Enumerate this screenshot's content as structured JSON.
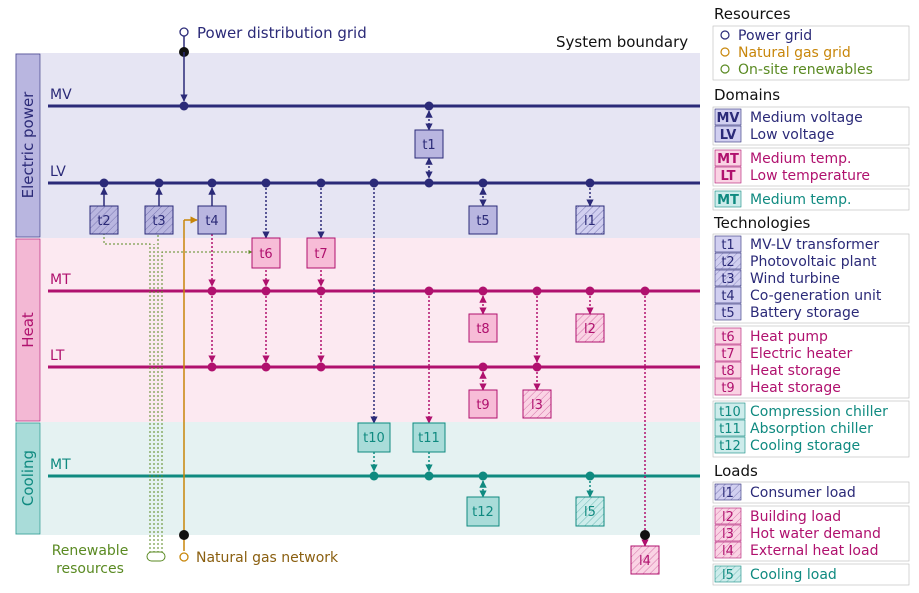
{
  "header": {
    "power_grid": "Power distribution grid",
    "system_boundary": "System boundary"
  },
  "footer": {
    "renewables_line1": "Renewable",
    "renewables_line2": "resources",
    "gas_network": "Natural gas network"
  },
  "domains": {
    "electric": "Electric power",
    "heat": "Heat",
    "cooling": "Cooling"
  },
  "buses": {
    "mv": "MV",
    "lv": "LV",
    "heat_mt": "MT",
    "heat_lt": "LT",
    "cool_mt": "MT"
  },
  "nodes": {
    "t1": "t1",
    "t2": "t2",
    "t3": "t3",
    "t4": "t4",
    "t5": "t5",
    "t6": "t6",
    "t7": "t7",
    "t8": "t8",
    "t9": "t9",
    "t10": "t10",
    "t11": "t11",
    "t12": "t12",
    "l1": "l1",
    "l2": "l2",
    "l3": "l3",
    "l4": "l4",
    "l5": "l5"
  },
  "legend": {
    "resources_title": "Resources",
    "resources": [
      "Power grid",
      "Natural gas grid",
      "On-site renewables"
    ],
    "domains_title": "Domains",
    "domain_items": [
      {
        "code": "MV",
        "label": "Medium voltage"
      },
      {
        "code": "LV",
        "label": "Low voltage"
      },
      {
        "code": "MT",
        "label": "Medium temp."
      },
      {
        "code": "LT",
        "label": "Low temperature"
      },
      {
        "code": "MT",
        "label": "Medium temp."
      }
    ],
    "technologies_title": "Technologies",
    "technologies": [
      {
        "code": "t1",
        "label": "MV-LV transformer"
      },
      {
        "code": "t2",
        "label": "Photovoltaic plant"
      },
      {
        "code": "t3",
        "label": "Wind turbine"
      },
      {
        "code": "t4",
        "label": "Co-generation unit"
      },
      {
        "code": "t5",
        "label": "Battery storage"
      },
      {
        "code": "t6",
        "label": "Heat pump"
      },
      {
        "code": "t7",
        "label": "Electric heater"
      },
      {
        "code": "t8",
        "label": "Heat storage"
      },
      {
        "code": "t9",
        "label": "Heat storage"
      },
      {
        "code": "t10",
        "label": "Compression chiller"
      },
      {
        "code": "t11",
        "label": "Absorption chiller"
      },
      {
        "code": "t12",
        "label": "Cooling storage"
      }
    ],
    "loads_title": "Loads",
    "loads": [
      {
        "code": "l1",
        "label": "Consumer load"
      },
      {
        "code": "l2",
        "label": "Building load"
      },
      {
        "code": "l3",
        "label": "Hot water demand"
      },
      {
        "code": "l4",
        "label": "External heat load"
      },
      {
        "code": "l5",
        "label": "Cooling load"
      }
    ]
  },
  "colors": {
    "electric": "#2b2a78",
    "heat": "#b0116e",
    "cooling": "#0f8a80",
    "gas": "#c8860a",
    "renewable": "#5a8a22",
    "electric_bg": "#e6e5f3",
    "heat_bg": "#fce9f1",
    "cooling_bg": "#e5f2f2"
  }
}
